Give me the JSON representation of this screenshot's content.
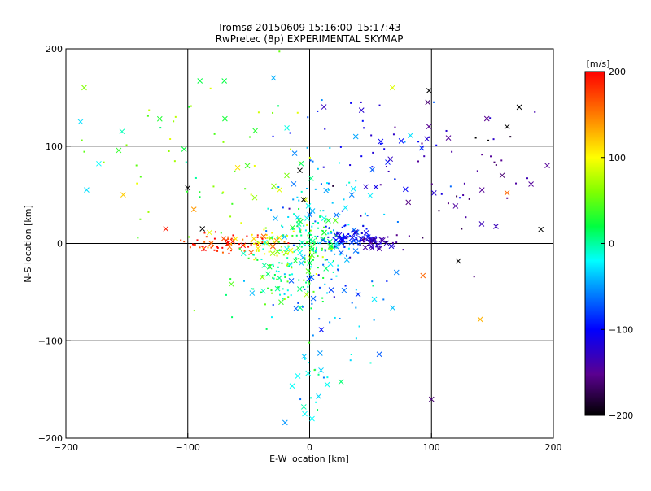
{
  "chart_data": {
    "type": "scatter",
    "title": "Tromsø 20150609 15:16:00–15:17:43",
    "subtitle": "RwPretec (8p) EXPERIMENTAL SKYMAP",
    "xlabel": "E-W location [km]",
    "ylabel": "N-S location [km]",
    "xlim": [
      -200,
      200
    ],
    "ylim": [
      -200,
      200
    ],
    "xticks": [
      "−200",
      "−100",
      "0",
      "100",
      "200"
    ],
    "yticks": [
      "−200",
      "−100",
      "0",
      "100",
      "200"
    ],
    "xtick_values": [
      -200,
      -100,
      0,
      100,
      200
    ],
    "ytick_values": [
      -200,
      -100,
      0,
      100,
      200
    ],
    "grid": true,
    "colorbar": {
      "label": "[m/s]",
      "min": -200,
      "max": 200,
      "ticks": [
        "200",
        "100",
        "0",
        "−100",
        "−200"
      ],
      "tick_values": [
        200,
        100,
        0,
        -100,
        -200
      ],
      "colormap": "rainbow (black → purple → blue → cyan → green → yellow → red)"
    },
    "clusters": [
      {
        "center": [
          -65,
          0
        ],
        "spread": [
          18,
          5
        ],
        "count": 70,
        "v": 180
      },
      {
        "center": [
          -30,
          2
        ],
        "spread": [
          15,
          8
        ],
        "count": 50,
        "v": 90
      },
      {
        "center": [
          -20,
          -35
        ],
        "spread": [
          22,
          22
        ],
        "count": 110,
        "v": 20
      },
      {
        "center": [
          0,
          5
        ],
        "spread": [
          15,
          12
        ],
        "count": 90,
        "v": 10
      },
      {
        "center": [
          10,
          30
        ],
        "spread": [
          30,
          55
        ],
        "count": 100,
        "v": -40
      },
      {
        "center": [
          20,
          -40
        ],
        "spread": [
          25,
          40
        ],
        "count": 60,
        "v": -60
      },
      {
        "center": [
          35,
          5
        ],
        "spread": [
          12,
          6
        ],
        "count": 60,
        "v": -100
      },
      {
        "center": [
          52,
          0
        ],
        "spread": [
          12,
          4
        ],
        "count": 50,
        "v": -150
      },
      {
        "center": [
          60,
          100
        ],
        "spread": [
          35,
          30
        ],
        "count": 45,
        "v": -120
      },
      {
        "center": [
          130,
          70
        ],
        "spread": [
          30,
          40
        ],
        "count": 45,
        "v": -170
      },
      {
        "center": [
          -70,
          80
        ],
        "spread": [
          40,
          50
        ],
        "count": 50,
        "v": 60
      },
      {
        "center": [
          -130,
          100
        ],
        "spread": [
          40,
          50
        ],
        "count": 15,
        "v": 30
      },
      {
        "center": [
          0,
          -150
        ],
        "spread": [
          10,
          25
        ],
        "count": 20,
        "v": -10
      }
    ],
    "markers": [
      {
        "x": -185,
        "y": 160,
        "v": 60
      },
      {
        "x": -188,
        "y": 125,
        "v": -30
      },
      {
        "x": -173,
        "y": 82,
        "v": -20
      },
      {
        "x": -183,
        "y": 55,
        "v": -30
      },
      {
        "x": -153,
        "y": 50,
        "v": 120
      },
      {
        "x": -123,
        "y": 128,
        "v": 30
      },
      {
        "x": -90,
        "y": 167,
        "v": 20
      },
      {
        "x": -70,
        "y": 167,
        "v": 20
      },
      {
        "x": -118,
        "y": 15,
        "v": 190
      },
      {
        "x": -100,
        "y": 57,
        "v": -200
      },
      {
        "x": -95,
        "y": 35,
        "v": 140
      },
      {
        "x": -88,
        "y": 15,
        "v": -200
      },
      {
        "x": 98,
        "y": 157,
        "v": -200
      },
      {
        "x": 97,
        "y": 145,
        "v": -180
      },
      {
        "x": 172,
        "y": 140,
        "v": -200
      },
      {
        "x": 162,
        "y": 120,
        "v": -200
      },
      {
        "x": 195,
        "y": 80,
        "v": -170
      },
      {
        "x": 162,
        "y": 52,
        "v": 160
      },
      {
        "x": 158,
        "y": 70,
        "v": -180
      },
      {
        "x": 122,
        "y": -18,
        "v": -200
      },
      {
        "x": 100,
        "y": -160,
        "v": -180
      },
      {
        "x": 140,
        "y": -78,
        "v": 130
      },
      {
        "x": 93,
        "y": -33,
        "v": 160
      },
      {
        "x": 68,
        "y": 160,
        "v": 90
      },
      {
        "x": -5,
        "y": 45,
        "v": -200
      },
      {
        "x": -8,
        "y": 75,
        "v": -200
      },
      {
        "x": 2,
        "y": -180,
        "v": -20
      },
      {
        "x": -4,
        "y": -175,
        "v": -20
      }
    ]
  }
}
